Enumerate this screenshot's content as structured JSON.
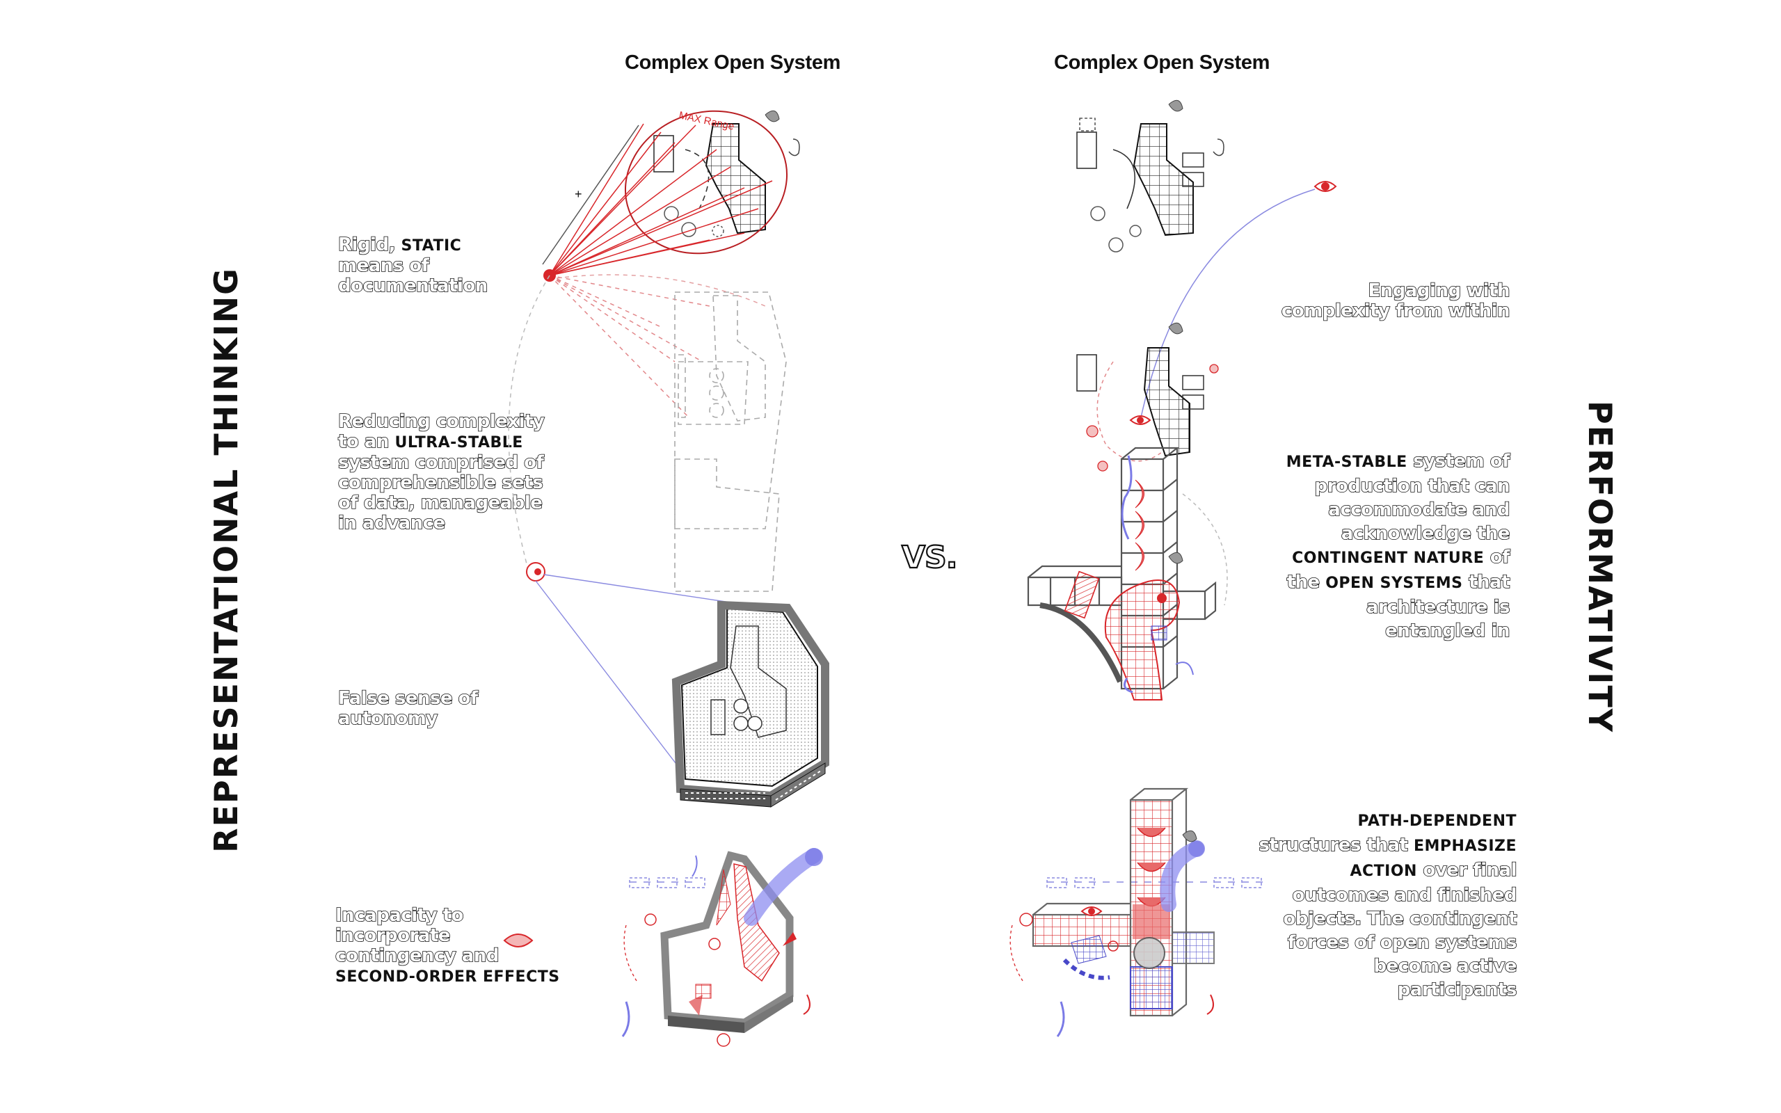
{
  "headings": {
    "left": "Complex Open System",
    "right": "Complex Open System"
  },
  "side_titles": {
    "left": "REPRESENTATIONAL THINKING",
    "right": "PERFORMATIVITY"
  },
  "vs_label": "VS.",
  "diagram_labels": {
    "max_range": "MAX Range",
    "plus": "+"
  },
  "left_notes": [
    {
      "parts": [
        {
          "t": "Rigid, ",
          "b": false
        },
        {
          "t": "STATIC",
          "b": true
        },
        {
          "t": " means of documentation",
          "b": false
        }
      ]
    },
    {
      "parts": [
        {
          "t": "Reducing complexity to an ",
          "b": false
        },
        {
          "t": "ULTRA-STABLE",
          "b": true
        },
        {
          "t": " system comprised of comprehensible sets of data, manageable in advance",
          "b": false
        }
      ]
    },
    {
      "parts": [
        {
          "t": "False sense of autonomy",
          "b": false
        }
      ]
    },
    {
      "parts": [
        {
          "t": "Incapacity to incorporate contingency and ",
          "b": false
        },
        {
          "t": "SECOND-ORDER EFFECTS",
          "b": true
        }
      ]
    }
  ],
  "right_notes": [
    {
      "parts": [
        {
          "t": "Engaging with complexity from within",
          "b": false
        }
      ]
    },
    {
      "parts": [
        {
          "t": "META-STABLE",
          "b": true
        },
        {
          "t": " system of production that can accommodate and acknowledge the ",
          "b": false
        },
        {
          "t": "CONTINGENT NATURE",
          "b": true
        },
        {
          "t": " of the ",
          "b": false
        },
        {
          "t": "OPEN SYSTEMS",
          "b": true
        },
        {
          "t": " that architecture is entangled in",
          "b": false
        }
      ]
    },
    {
      "parts": [
        {
          "t": "PATH-DEPENDENT",
          "b": true
        },
        {
          "t": " structures that ",
          "b": false
        },
        {
          "t": "EMPHASIZE ACTION",
          "b": true
        },
        {
          "t": " over final outcomes and finished objects. The contingent forces of open systems become active participants",
          "b": false
        }
      ]
    }
  ],
  "colors": {
    "accent_red": "#d8262a",
    "accent_blue": "#5a5ce0",
    "ink": "#111111",
    "gray": "#8a8a8a"
  }
}
